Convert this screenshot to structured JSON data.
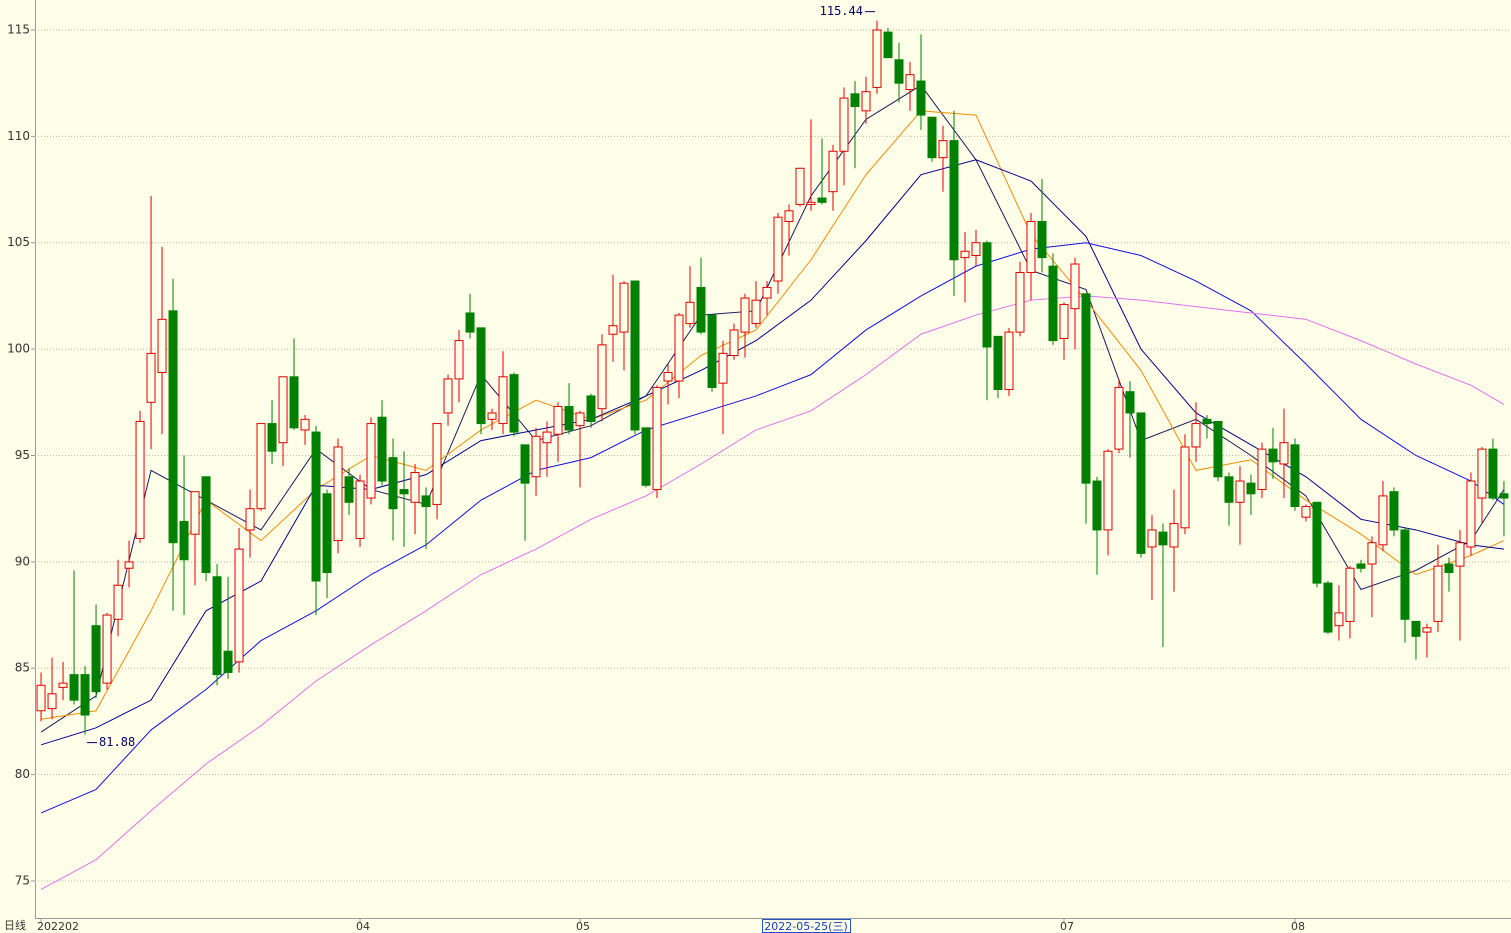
{
  "chart_data": {
    "type": "candlestick",
    "period_label": "日线",
    "cursor_label": "2022-05-25(三)",
    "high_note": "115.44",
    "low_note": "81.88",
    "up_color": "#e00000",
    "down_color": "#008000",
    "grid": true,
    "ylim": [
      73.26,
      116.41
    ],
    "yticks": [
      75,
      80,
      85,
      90,
      95,
      100,
      105,
      110,
      115
    ],
    "xlim": [
      -0.55,
      133.64
    ],
    "xticks": [
      {
        "value": 0,
        "label": "202202"
      },
      {
        "value": 29,
        "label": "04"
      },
      {
        "value": 49,
        "label": "05"
      },
      {
        "value": 93,
        "label": "07"
      },
      {
        "value": 114,
        "label": "08"
      }
    ],
    "open": [
      83.0,
      83.1,
      84.1,
      84.7,
      84.7,
      87.0,
      84.3,
      87.3,
      89.7,
      91.1,
      97.5,
      98.9,
      101.8,
      91.9,
      91.3,
      94.0,
      89.3,
      85.8,
      85.3,
      91.5,
      92.5,
      96.5,
      95.6,
      98.7,
      96.2,
      96.1,
      93.2,
      91.0,
      94.0,
      91.1,
      93.0,
      96.8,
      94.9,
      93.4,
      92.8,
      93.1,
      92.7,
      97.0,
      98.6,
      101.7,
      101.0,
      96.7,
      96.5,
      98.8,
      95.5,
      94.0,
      95.6,
      96.0,
      97.3,
      96.4,
      97.8,
      97.2,
      100.7,
      100.8,
      103.2,
      96.3,
      93.4,
      98.5,
      98.5,
      101.2,
      102.9,
      101.6,
      98.4,
      99.7,
      100.8,
      101.2,
      102.4,
      103.2,
      106.0,
      106.8,
      106.8,
      107.1,
      107.4,
      109.3,
      112.0,
      111.2,
      112.3,
      114.9,
      113.6,
      112.2,
      112.6,
      110.9,
      109.0,
      109.8,
      104.3,
      104.4,
      105.0,
      100.6,
      98.1,
      100.8,
      103.6,
      106.0,
      103.9,
      100.5,
      101.9,
      102.6,
      93.8,
      91.5,
      95.3,
      98.0,
      97.0,
      90.7,
      91.4,
      90.7,
      91.6,
      95.4,
      96.7,
      96.6,
      94.0,
      92.8,
      93.7,
      93.4,
      95.3,
      94.6,
      95.5,
      92.1,
      92.8,
      89.0,
      87.0,
      87.2,
      89.9,
      89.9,
      90.8,
      93.3,
      91.5,
      87.2,
      86.7,
      87.2,
      89.9,
      89.8,
      90.7,
      93.0,
      95.3,
      93.2
    ],
    "high": [
      84.8,
      85.5,
      85.3,
      89.6,
      85.1,
      88.0,
      87.6,
      90.1,
      91.0,
      97.1,
      107.2,
      104.8,
      103.3,
      95.0,
      93.3,
      94.0,
      89.9,
      89.3,
      91.6,
      93.4,
      96.5,
      97.6,
      98.7,
      100.5,
      96.9,
      96.4,
      93.4,
      95.8,
      94.4,
      94.1,
      96.8,
      97.6,
      95.8,
      95.2,
      94.6,
      93.5,
      96.5,
      98.8,
      100.9,
      102.6,
      101.0,
      97.2,
      99.9,
      98.9,
      95.5,
      96.3,
      96.6,
      97.5,
      98.4,
      97.1,
      97.9,
      100.7,
      103.5,
      103.2,
      103.2,
      96.3,
      98.3,
      99.3,
      101.7,
      103.9,
      104.3,
      101.6,
      100.4,
      101.2,
      102.6,
      103.2,
      103.2,
      106.4,
      106.8,
      108.5,
      110.8,
      109.9,
      109.6,
      112.3,
      112.6,
      112.8,
      115.44,
      115.1,
      114.4,
      113.5,
      114.8,
      110.9,
      110.5,
      111.2,
      105.5,
      105.6,
      105.1,
      100.6,
      101.0,
      104.1,
      106.4,
      108.0,
      104.5,
      102.2,
      104.3,
      102.6,
      94.0,
      95.3,
      98.6,
      98.5,
      97.0,
      92.2,
      91.8,
      93.4,
      96.0,
      97.5,
      96.9,
      96.6,
      94.2,
      94.5,
      94.1,
      95.6,
      96.3,
      97.2,
      95.8,
      92.7,
      92.8,
      89.1,
      88.9,
      89.8,
      90.1,
      91.2,
      93.8,
      93.5,
      91.6,
      87.2,
      87.1,
      90.8,
      90.2,
      91.5,
      94.2,
      95.4,
      95.8,
      93.8
    ],
    "low": [
      82.5,
      82.6,
      83.5,
      83.3,
      81.88,
      83.6,
      84.0,
      86.5,
      88.8,
      90.9,
      95.3,
      96.0,
      87.7,
      87.5,
      88.9,
      89.1,
      84.2,
      84.5,
      84.8,
      90.2,
      92.4,
      94.6,
      94.5,
      96.2,
      95.5,
      87.5,
      88.3,
      90.4,
      92.2,
      90.7,
      92.7,
      93.6,
      91.0,
      90.7,
      91.3,
      90.6,
      92.0,
      96.4,
      97.5,
      100.5,
      96.0,
      96.2,
      96.0,
      95.9,
      91.0,
      93.1,
      94.0,
      94.7,
      96.0,
      93.5,
      96.3,
      96.6,
      99.4,
      99.0,
      96.0,
      93.5,
      93.0,
      97.4,
      97.7,
      101.0,
      100.7,
      98.0,
      96.0,
      99.5,
      99.6,
      101.0,
      101.6,
      102.6,
      104.4,
      106.7,
      106.5,
      106.8,
      106.5,
      107.7,
      108.5,
      110.6,
      112.0,
      113.7,
      111.6,
      111.2,
      110.3,
      108.8,
      107.4,
      102.5,
      102.2,
      103.9,
      97.6,
      97.7,
      97.8,
      100.6,
      102.3,
      103.6,
      100.2,
      99.5,
      100.0,
      91.8,
      89.4,
      90.3,
      95.1,
      94.9,
      90.2,
      88.2,
      86.0,
      88.6,
      91.3,
      94.7,
      95.8,
      93.8,
      91.7,
      90.8,
      92.2,
      93.0,
      93.9,
      93.0,
      92.4,
      91.9,
      88.8,
      86.6,
      86.3,
      86.4,
      89.5,
      87.4,
      90.5,
      91.2,
      86.2,
      85.4,
      85.5,
      86.7,
      88.6,
      86.3,
      90.3,
      91.8,
      92.9,
      91.2
    ],
    "close": [
      84.2,
      83.8,
      84.3,
      83.5,
      82.8,
      83.9,
      87.5,
      88.9,
      90.0,
      96.6,
      99.8,
      101.4,
      90.9,
      90.1,
      93.3,
      89.5,
      84.7,
      84.8,
      90.6,
      92.5,
      96.5,
      95.2,
      98.7,
      96.3,
      96.7,
      89.1,
      89.5,
      95.4,
      92.8,
      93.8,
      96.5,
      93.8,
      92.5,
      93.2,
      94.2,
      92.6,
      96.5,
      98.6,
      100.4,
      100.8,
      96.5,
      97.0,
      98.7,
      96.1,
      93.7,
      95.9,
      96.1,
      97.3,
      96.2,
      97.0,
      96.6,
      100.2,
      101.1,
      103.1,
      96.2,
      93.6,
      98.2,
      98.9,
      101.6,
      102.2,
      100.8,
      98.2,
      99.8,
      100.9,
      102.4,
      102.3,
      102.9,
      106.2,
      106.5,
      108.5,
      106.9,
      106.9,
      109.3,
      111.8,
      111.4,
      112.1,
      115.0,
      113.7,
      112.5,
      112.9,
      111.0,
      109.0,
      109.8,
      104.2,
      104.6,
      105.0,
      100.1,
      98.1,
      100.8,
      103.6,
      106.0,
      104.3,
      100.4,
      102.1,
      104.0,
      93.7,
      91.5,
      95.2,
      98.2,
      97.0,
      90.4,
      91.5,
      90.8,
      91.8,
      95.4,
      96.5,
      96.5,
      94.0,
      92.8,
      93.8,
      93.2,
      95.3,
      94.7,
      95.6,
      92.6,
      92.6,
      89.0,
      86.7,
      87.6,
      89.7,
      89.7,
      90.9,
      93.1,
      91.5,
      87.3,
      86.5,
      86.9,
      89.8,
      89.5,
      90.9,
      93.8,
      95.3,
      93.0,
      93.0
    ],
    "ma_x": [
      0,
      5,
      10,
      15,
      20,
      25,
      30,
      35,
      40,
      45,
      50,
      55,
      60,
      65,
      70,
      75,
      80,
      85,
      90,
      95,
      100,
      105,
      110,
      115,
      120,
      125,
      130,
      133
    ],
    "lines": [
      {
        "color": "#1a1a60",
        "values": [
          82.0,
          83.7,
          94.3,
          92.9,
          91.5,
          95.3,
          93.4,
          92.7,
          98.8,
          95.7,
          96.4,
          97.8,
          101.6,
          101.8,
          107.2,
          110.8,
          112.4,
          108.9,
          103.7,
          102.8,
          95.7,
          96.7,
          95.0,
          93.1,
          88.7,
          89.6,
          91.0,
          93.4
        ]
      },
      {
        "color": "#f08c00",
        "values": [
          82.6,
          83.0,
          87.7,
          92.9,
          91.0,
          93.4,
          95.0,
          94.3,
          96.2,
          97.6,
          96.7,
          97.6,
          99.7,
          100.9,
          104.2,
          108.2,
          111.2,
          111.0,
          105.4,
          102.3,
          99.0,
          94.3,
          94.8,
          92.9,
          91.3,
          89.4,
          90.3,
          91.0
        ]
      },
      {
        "color": "#000090",
        "values": [
          81.4,
          82.2,
          83.5,
          87.7,
          89.1,
          93.6,
          93.4,
          94.1,
          95.7,
          96.2,
          96.7,
          97.8,
          99.0,
          100.4,
          102.3,
          105.1,
          108.2,
          108.9,
          107.9,
          105.3,
          100.0,
          97.0,
          95.5,
          94.0,
          92.0,
          91.5,
          90.8,
          90.6
        ]
      },
      {
        "color": "#1010e0",
        "values": [
          78.2,
          79.3,
          82.1,
          84.0,
          86.3,
          87.7,
          89.4,
          90.8,
          92.9,
          94.3,
          94.9,
          96.2,
          97.0,
          97.8,
          98.8,
          100.9,
          102.5,
          103.9,
          104.7,
          105.0,
          104.4,
          103.2,
          101.8,
          99.3,
          96.7,
          95.0,
          93.8,
          92.7
        ]
      },
      {
        "color": "#e070f0",
        "values": [
          74.6,
          76.0,
          78.3,
          80.5,
          82.3,
          84.4,
          86.1,
          87.7,
          89.4,
          90.6,
          92.0,
          93.1,
          94.6,
          96.2,
          97.1,
          98.8,
          100.7,
          101.6,
          102.3,
          102.5,
          102.3,
          102.0,
          101.7,
          101.4,
          100.4,
          99.3,
          98.3,
          97.4
        ]
      }
    ]
  }
}
